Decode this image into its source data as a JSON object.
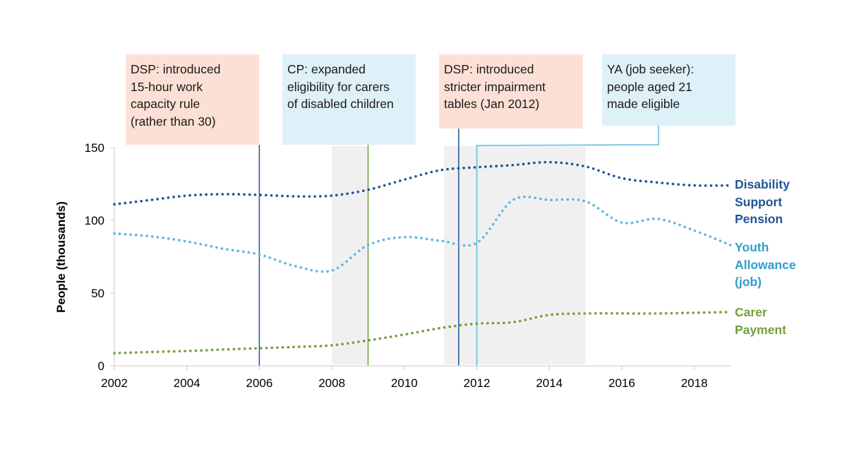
{
  "chart_data": {
    "type": "line",
    "title": "",
    "xlabel": "",
    "ylabel": "People (thousands)",
    "xlim": [
      2002,
      2019
    ],
    "ylim": [
      0,
      150
    ],
    "x_ticks": [
      2002,
      2004,
      2006,
      2008,
      2010,
      2012,
      2014,
      2016,
      2018
    ],
    "y_ticks": [
      0,
      50,
      100,
      150
    ],
    "grid": false,
    "legend": "inline-right",
    "x": [
      2002,
      2003,
      2004,
      2005,
      2006,
      2007,
      2008,
      2009,
      2010,
      2011,
      2012,
      2013,
      2014,
      2015,
      2016,
      2017,
      2018,
      2019
    ],
    "series": [
      {
        "name": "Disability Support Pension",
        "label_lines": [
          "Disability",
          "Support",
          "Pension"
        ],
        "color": "#1f5597",
        "values": [
          111,
          114,
          117,
          118,
          117.5,
          116.5,
          117,
          121,
          128,
          134.5,
          136.5,
          138,
          140,
          137,
          129,
          126,
          124,
          124
        ]
      },
      {
        "name": "Youth Allowance (job)",
        "label_lines": [
          "Youth",
          "Allowance",
          "(job)"
        ],
        "color": "#5bb8e0",
        "label_color": "#2e9ec9",
        "values": [
          91,
          89,
          85.5,
          80.5,
          76.5,
          68.5,
          65.5,
          83,
          88.5,
          86,
          84.5,
          114,
          114,
          113,
          98.5,
          101,
          93,
          83
        ]
      },
      {
        "name": "Carer Payment",
        "label_lines": [
          "Carer",
          "Payment"
        ],
        "color": "#70a03a",
        "values": [
          8.7,
          9.5,
          10.2,
          11.2,
          12.1,
          13,
          14.1,
          17.5,
          21.5,
          26,
          29,
          30,
          35,
          36,
          36,
          36,
          36.5,
          37
        ]
      }
    ],
    "shaded_periods": [
      {
        "start": 2008,
        "end": 2009
      },
      {
        "start": 2011.1,
        "end": 2015
      }
    ],
    "annotations": [
      {
        "lines": [
          "DSP: introduced",
          "15-hour work",
          "capacity rule",
          "(rather than 30)"
        ],
        "year": 2006,
        "series": "DSP",
        "box_color": "#fde0d5",
        "line_color": "#1f5597"
      },
      {
        "lines": [
          "CP: expanded",
          "eligibility for carers",
          "of disabled children"
        ],
        "year": 2009,
        "series": "CP",
        "box_color": "#dff1f8",
        "line_color": "#70a03a"
      },
      {
        "lines": [
          "DSP: introduced",
          "stricter impairment",
          "tables (Jan 2012)"
        ],
        "year": 2011.5,
        "series": "DSP",
        "box_color": "#fde0d5",
        "line_color": "#1f5597"
      },
      {
        "lines": [
          "YA (job seeker):",
          "people aged 21",
          "made eligible"
        ],
        "year": 2012,
        "series": "YA",
        "box_color": "#dff1f8",
        "line_color": "#5bb8e0"
      }
    ]
  }
}
